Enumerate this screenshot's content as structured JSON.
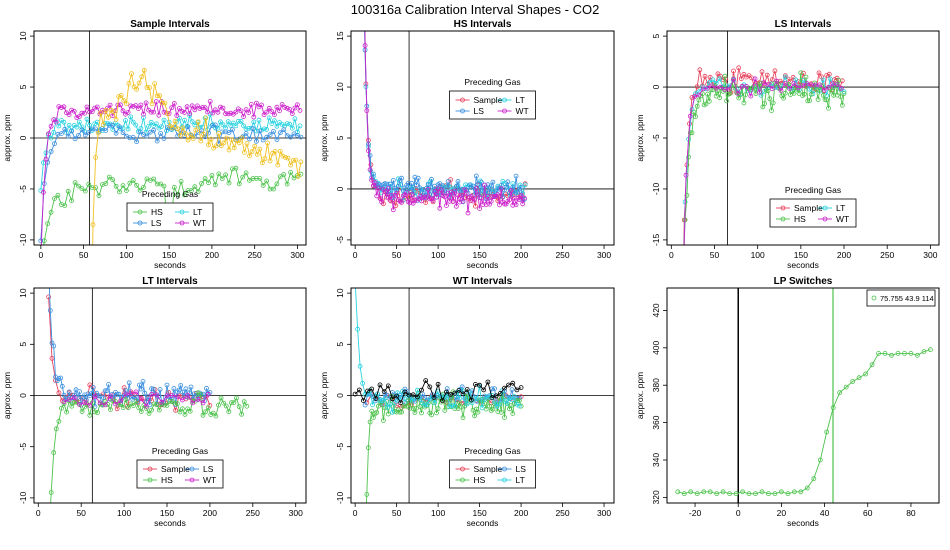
{
  "page_title": "100316a   Calibration Interval Shapes - CO2",
  "colors": {
    "Sample": "#e8425c",
    "HS": "#4cc24c",
    "LS": "#3a8fe0",
    "LT": "#28d2e0",
    "WT": "#cc22cc",
    "Black": "#000000",
    "Orange": "#f0c020"
  },
  "chart_data": [
    {
      "id": "sample",
      "type": "scatter",
      "title": "Sample Intervals",
      "xlabel": "seconds",
      "ylabel": "approx. ppm",
      "xlim": [
        -8,
        310
      ],
      "ylim": [
        -10.5,
        10.5
      ],
      "xticks": [
        0,
        50,
        100,
        150,
        200,
        250,
        300
      ],
      "yticks": [
        -10,
        -5,
        0,
        5,
        10
      ],
      "vline": 57,
      "hline": 0,
      "legend": {
        "title": "Preceding Gas",
        "position": "bottom-center",
        "cols": 2,
        "entries": [
          "HS",
          "LT",
          "LS",
          "WT"
        ]
      },
      "series": [
        {
          "name": "HS",
          "color": "HS",
          "gen": {
            "xs": 0,
            "xe": 305,
            "dx": 4,
            "base": -5.5,
            "drift": 2.0,
            "n": 1.0,
            "a0": -7,
            "tau": 10,
            "spikes": [
              [
                150,
                -8.5
              ],
              [
                270,
                -5
              ]
            ]
          }
        },
        {
          "name": "LT",
          "color": "LT",
          "gen": {
            "xs": 0,
            "xe": 305,
            "dx": 3,
            "base": 1.2,
            "drift": 0,
            "n": 0.6,
            "a0": -6.5,
            "tau": 6
          }
        },
        {
          "name": "LS",
          "color": "LS",
          "gen": {
            "xs": 0,
            "xe": 305,
            "dx": 4,
            "base": 0.5,
            "drift": 0,
            "n": 0.6,
            "a0": -10,
            "tau": 6
          }
        },
        {
          "name": "WT",
          "color": "WT",
          "gen": {
            "xs": 0,
            "xe": 305,
            "dx": 3,
            "base": 2.8,
            "drift": 0,
            "n": 0.6,
            "a0": -15,
            "tau": 5
          }
        },
        {
          "name": "",
          "color": "Orange",
          "gen": {
            "xs": 58,
            "xe": 305,
            "dx": 3,
            "base": 2,
            "drift": -4,
            "n": 1.0,
            "a0": -30,
            "tau": 3,
            "bump": [
              120,
              30,
              4.5
            ]
          }
        }
      ]
    },
    {
      "id": "hs",
      "type": "scatter",
      "title": "HS Intervals",
      "xlabel": "seconds",
      "ylabel": "approx. ppm",
      "xlim": [
        -5,
        312
      ],
      "ylim": [
        -5.5,
        15.5
      ],
      "xticks": [
        0,
        50,
        100,
        150,
        200,
        250,
        300
      ],
      "yticks": [
        -5,
        0,
        5,
        10,
        15
      ],
      "vline": 65,
      "hline": 0,
      "legend": {
        "title": "Preceding Gas",
        "position": "top-center",
        "cols": 2,
        "entries": [
          "Sample",
          "LT",
          "LS",
          "WT"
        ]
      },
      "series": [
        {
          "name": "Sample",
          "color": "Sample",
          "gen": {
            "xs": 10,
            "xe": 205,
            "dx": 3,
            "base": -0.6,
            "drift": 0,
            "n": 0.8,
            "a0": 25,
            "tau": 4
          }
        },
        {
          "name": "LT",
          "color": "LT",
          "gen": {
            "xs": 10,
            "xe": 205,
            "dx": 3,
            "base": 0,
            "drift": 0,
            "n": 0.7,
            "a0": 20,
            "tau": 4
          }
        },
        {
          "name": "LS",
          "color": "LS",
          "gen": {
            "xs": 10,
            "xe": 205,
            "dx": 2,
            "base": 0.1,
            "drift": 0,
            "n": 0.8,
            "a0": 22,
            "tau": 4
          }
        },
        {
          "name": "WT",
          "color": "WT",
          "gen": {
            "xs": 10,
            "xe": 205,
            "dx": 2,
            "base": -0.9,
            "drift": 0,
            "n": 0.8,
            "a0": 25,
            "tau": 4
          }
        }
      ]
    },
    {
      "id": "ls",
      "type": "scatter",
      "title": "LS Intervals",
      "xlabel": "seconds",
      "ylabel": "approx. ppm",
      "xlim": [
        -5,
        310
      ],
      "ylim": [
        -15.5,
        5.5
      ],
      "xticks": [
        0,
        50,
        100,
        150,
        200,
        250,
        300
      ],
      "yticks": [
        -15,
        -10,
        -5,
        0,
        5
      ],
      "vline": 65,
      "hline": 0,
      "legend": {
        "title": "Preceding Gas",
        "position": "bottom-center",
        "cols": 2,
        "entries": [
          "Sample",
          "LT",
          "HS",
          "WT"
        ]
      },
      "series": [
        {
          "name": "Sample",
          "color": "Sample",
          "gen": {
            "xs": 12,
            "xe": 200,
            "dx": 3,
            "base": 0.7,
            "drift": 0,
            "n": 0.8,
            "a0": -25,
            "tau": 5
          }
        },
        {
          "name": "LT",
          "color": "LT",
          "gen": {
            "xs": 12,
            "xe": 200,
            "dx": 4,
            "base": 0,
            "drift": 0,
            "n": 0.7,
            "a0": -25,
            "tau": 5
          }
        },
        {
          "name": "HS",
          "color": "HS",
          "gen": {
            "xs": 12,
            "xe": 200,
            "dx": 2,
            "base": -0.5,
            "drift": 0,
            "n": 1.0,
            "a0": -25,
            "tau": 6
          }
        },
        {
          "name": "WT",
          "color": "WT",
          "gen": {
            "xs": 12,
            "xe": 200,
            "dx": 5,
            "base": 0,
            "drift": 0,
            "n": 0.6,
            "a0": -25,
            "tau": 5
          }
        }
      ]
    },
    {
      "id": "lt",
      "type": "scatter",
      "title": "LT Intervals",
      "xlabel": "seconds",
      "ylabel": "approx. ppm",
      "xlim": [
        -5,
        312
      ],
      "ylim": [
        -10.5,
        10.5
      ],
      "xticks": [
        0,
        50,
        100,
        150,
        200,
        250,
        300
      ],
      "yticks": [
        -10,
        -5,
        0,
        5,
        10
      ],
      "vline": 63,
      "hline": 0,
      "legend": {
        "title": "Preceding Gas",
        "position": "bottom-center",
        "cols": 2,
        "entries": [
          "Sample",
          "LS",
          "HS",
          "WT"
        ]
      },
      "series": [
        {
          "name": "Sample",
          "color": "Sample",
          "gen": {
            "xs": 12,
            "xe": 200,
            "dx": 4,
            "base": -0.2,
            "drift": 0,
            "n": 0.7,
            "a0": 10,
            "tau": 4
          }
        },
        {
          "name": "LS",
          "color": "LS",
          "gen": {
            "xs": 10,
            "xe": 200,
            "dx": 2,
            "base": 0,
            "drift": 0,
            "n": 0.8,
            "a0": 18,
            "tau": 5
          }
        },
        {
          "name": "HS",
          "color": "HS",
          "gen": {
            "xs": 12,
            "xe": 245,
            "dx": 3,
            "base": -1,
            "drift": 0,
            "n": 0.8,
            "a0": -14,
            "tau": 5
          }
        },
        {
          "name": "WT",
          "color": "WT",
          "gen": {
            "xs": 30,
            "xe": 200,
            "dx": 6,
            "base": -0.3,
            "drift": 0,
            "n": 0.5,
            "a0": 0,
            "tau": 5
          }
        }
      ]
    },
    {
      "id": "wt",
      "type": "scatter",
      "title": "WT Intervals",
      "xlabel": "seconds",
      "ylabel": "approx. ppm",
      "xlim": [
        -5,
        312
      ],
      "ylim": [
        -10.5,
        10.5
      ],
      "xticks": [
        0,
        50,
        100,
        150,
        200,
        250,
        300
      ],
      "yticks": [
        -10,
        -5,
        0,
        5,
        10
      ],
      "vline": 65,
      "hline": 0,
      "legend": {
        "title": "Preceding Gas",
        "position": "bottom-center",
        "cols": 2,
        "entries": [
          "Sample",
          "LS",
          "HS",
          "LT"
        ]
      },
      "series": [
        {
          "name": "Sample",
          "color": "Sample",
          "gen": {
            "xs": 14,
            "xe": 200,
            "dx": 6,
            "base": -0.4,
            "drift": 0,
            "n": 0.5,
            "a0": 0,
            "tau": 5
          }
        },
        {
          "name": "LS",
          "color": "LS",
          "gen": {
            "xs": 12,
            "xe": 200,
            "dx": 3,
            "base": -0.2,
            "drift": 0,
            "n": 0.8,
            "a0": 0,
            "tau": 5
          }
        },
        {
          "name": "HS",
          "color": "HS",
          "gen": {
            "xs": 12,
            "xe": 200,
            "dx": 2,
            "base": -1,
            "drift": 0,
            "n": 0.8,
            "a0": -14,
            "tau": 3
          }
        },
        {
          "name": "LT",
          "color": "LT",
          "gen": {
            "xs": 0,
            "xe": 200,
            "dx": 3,
            "base": -0.3,
            "drift": 0,
            "n": 0.8,
            "a0": 11,
            "tau": 5
          }
        },
        {
          "name": "",
          "color": "Black",
          "gen": {
            "xs": 0,
            "xe": 200,
            "dx": 5,
            "base": 0.3,
            "drift": 0,
            "n": 0.7,
            "a0": 0,
            "tau": 5
          }
        }
      ]
    },
    {
      "id": "lp",
      "type": "line",
      "title": "LP Switches",
      "xlabel": "seconds",
      "ylabel": "approx. ppm",
      "xlim": [
        -33,
        93
      ],
      "ylim": [
        317,
        432
      ],
      "xticks": [
        -20,
        0,
        20,
        40,
        60,
        80
      ],
      "yticks": [
        320,
        340,
        360,
        380,
        400,
        420
      ],
      "vlines": [
        {
          "x": 0,
          "color": "Black"
        },
        {
          "x": 43.9,
          "color": "HS"
        }
      ],
      "legend": {
        "position": "top-right",
        "entries": [
          "75.755 43.9 114"
        ]
      },
      "series": [
        {
          "name": "75.755 43.9 114",
          "color": "HS",
          "x": [
            -28,
            -25,
            -22,
            -19,
            -16,
            -13,
            -10,
            -7,
            -4,
            -1,
            2,
            5,
            8,
            11,
            14,
            17,
            20,
            23,
            26,
            29,
            32,
            35,
            38,
            41,
            44,
            47,
            50,
            53,
            56,
            59,
            62,
            65,
            68,
            71,
            74,
            77,
            80,
            83,
            86,
            89
          ],
          "y": [
            323,
            322,
            323,
            322,
            323,
            323,
            322,
            323,
            322,
            322,
            323,
            322,
            322,
            323,
            322,
            322,
            323,
            322,
            323,
            323,
            325,
            330,
            340,
            355,
            368,
            376,
            379,
            382,
            384,
            386,
            391,
            397,
            397,
            396,
            397,
            397,
            397,
            396,
            398,
            399
          ]
        }
      ]
    }
  ]
}
